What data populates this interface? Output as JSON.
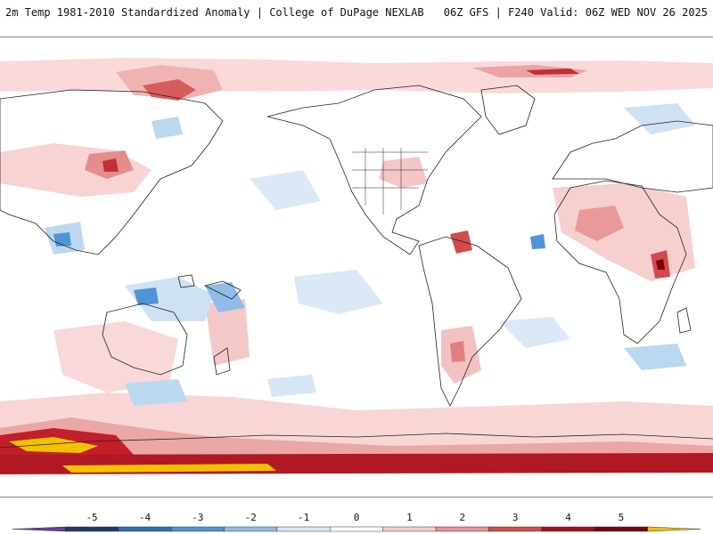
{
  "header": {
    "left_title": "2m Temp 1981-2010 Standardized Anomaly | College of DuPage NEXLAB",
    "right_title": "06Z GFS | F240 Valid: 06Z WED NOV 26 2025"
  },
  "colorbar": {
    "ticks": [
      "-5",
      "-4",
      "-3",
      "-2",
      "-1",
      "0",
      "1",
      "2",
      "3",
      "4",
      "5"
    ],
    "colors": [
      "#6a3d9a",
      "#1f3a6b",
      "#2f6fb8",
      "#4f94d6",
      "#8fbde8",
      "#d6e6f5",
      "#ffffff",
      "#f4cccc",
      "#e69595",
      "#d24b4b",
      "#a30f1a",
      "#7a0000",
      "#f2c200"
    ]
  },
  "map": {
    "background": "#ffffff",
    "land_outline_color": "#222222"
  }
}
